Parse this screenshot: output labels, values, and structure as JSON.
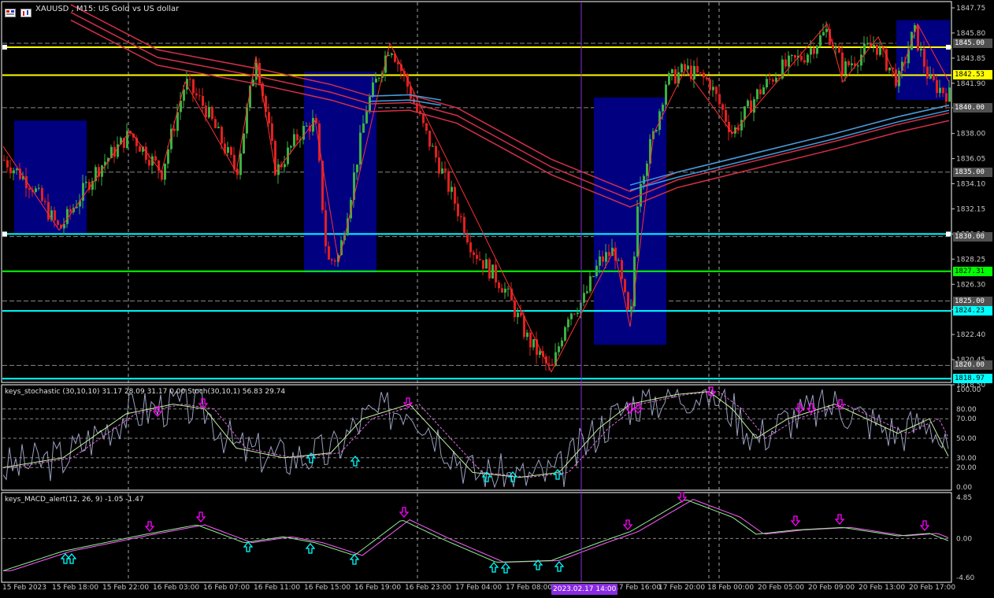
{
  "header": {
    "symbol_title": "XAUUSD , M15:  US Gold vs US dollar"
  },
  "stoch_panel": {
    "title": "keys_stochastic (30,10,10) 31.17 28.09 31.17 0.00  Stoch(30,10,1) 56.83 29.74",
    "levels": [
      "100.00",
      "80.00",
      "70.00",
      "50.00",
      "30.00",
      "20.00",
      "0.00"
    ]
  },
  "macd_panel": {
    "title": "keys_MACD_alert(12, 26, 9) -1.05 -1.47",
    "levels": [
      "4.85",
      "0.00",
      "-4.60"
    ]
  },
  "price_axis": {
    "ticks": [
      "1847.75",
      "1845.80",
      "1843.85",
      "1841.90",
      "1840.00",
      "1838.00",
      "1836.05",
      "1834.10",
      "1832.15",
      "1830.20",
      "1828.25",
      "1826.30",
      "1824.35",
      "1822.40",
      "1820.45",
      "1818.50"
    ]
  },
  "price_labels": [
    {
      "value": "1845.00",
      "color": "#cccccc",
      "bg": "#505050",
      "text_color": "#ffffff"
    },
    {
      "value": "1842.53",
      "color": "#ffff00",
      "bg": "#ffff00",
      "text_color": "#000000"
    },
    {
      "value": "1840.00",
      "color": "#cccccc",
      "bg": "#505050",
      "text_color": "#ffffff"
    },
    {
      "value": "1835.00",
      "color": "#cccccc",
      "bg": "#505050",
      "text_color": "#ffffff"
    },
    {
      "value": "1830.00",
      "color": "#cccccc",
      "bg": "#505050",
      "text_color": "#ffffff"
    },
    {
      "value": "1827.31",
      "color": "#00ff00",
      "bg": "#00ff00",
      "text_color": "#000000"
    },
    {
      "value": "1825.00",
      "color": "#cccccc",
      "bg": "#505050",
      "text_color": "#ffffff"
    },
    {
      "value": "1824.23",
      "color": "#00ffff",
      "bg": "#00ffff",
      "text_color": "#000000"
    },
    {
      "value": "1820.00",
      "color": "#cccccc",
      "bg": "#505050",
      "text_color": "#ffffff"
    },
    {
      "value": "1818.97",
      "color": "#00ffff",
      "bg": "#00ffff",
      "text_color": "#000000"
    }
  ],
  "time_axis": {
    "labels": [
      "15 Feb 2023",
      "15 Feb 18:00",
      "15 Feb 22:00",
      "16 Feb 03:00",
      "16 Feb 07:00",
      "16 Feb 11:00",
      "16 Feb 15:00",
      "16 Feb 19:00",
      "16 Feb 23:00",
      "17 Feb 04:00",
      "17 Feb 08:00",
      "17 Feb 16:00",
      "17 Feb 20:00",
      "18 Feb 00:00",
      "20 Feb 05:00",
      "20 Feb 09:00",
      "20 Feb 13:00",
      "20 Feb 17:00"
    ],
    "cursor_label": "2023.02.17 14:00"
  },
  "colors": {
    "bull": "#3cb043",
    "bear": "#e02020",
    "zone": "#000080",
    "ema_red": "#d42f4a",
    "ema_blue": "#3aa0e0",
    "stoch_main": "#c6f0a0",
    "stoch_signal": "#e070e0",
    "macd_main": "#90ee90",
    "macd_signal": "#ff60ff",
    "arrow_up": "#00ffff",
    "arrow_down": "#ff00ff"
  }
}
